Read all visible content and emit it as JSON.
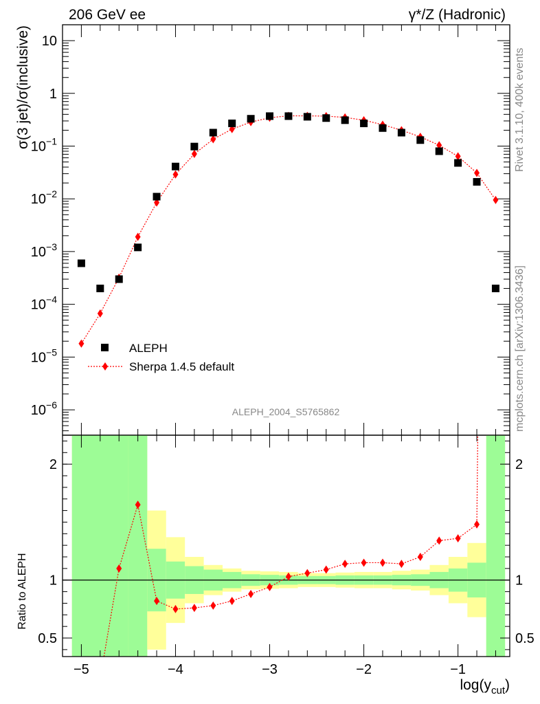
{
  "header": {
    "left_title": "206 GeV ee",
    "right_title": "γ*/Z (Hadronic)"
  },
  "side_labels": {
    "rivet": "Rivet 3.1.10,  400k events",
    "mcplots": "mcplots.cern.ch [arXiv:1306.3436]"
  },
  "analysis_id": "ALEPH_2004_S5765862",
  "chart_data": [
    {
      "type": "scatter",
      "scale": "log",
      "title": "206 GeV ee",
      "ylabel": "σ(3 jet)/σ(inclusive)",
      "xlabel": "log(y_cut)",
      "xlim": [
        -5.2,
        -0.45
      ],
      "ylim": [
        3.3e-07,
        20
      ],
      "x_ticks": [
        -5,
        -4,
        -3,
        -2,
        -1
      ],
      "y_ticks": [
        {
          "value": 1e-06,
          "base": "10",
          "exp": "−6"
        },
        {
          "value": 1e-05,
          "base": "10",
          "exp": "−5"
        },
        {
          "value": 0.0001,
          "base": "10",
          "exp": "−4"
        },
        {
          "value": 0.001,
          "base": "10",
          "exp": "−3"
        },
        {
          "value": 0.01,
          "base": "10",
          "exp": "−2"
        },
        {
          "value": 0.1,
          "base": "10",
          "exp": "−1"
        },
        {
          "value": 1,
          "base": "1",
          "exp": ""
        },
        {
          "value": 10,
          "base": "10",
          "exp": ""
        }
      ],
      "legend": [
        {
          "label": "ALEPH",
          "marker": "square",
          "color": "#000000"
        },
        {
          "label": "Sherpa 1.4.5 default",
          "marker": "diamond",
          "color": "#ff0000"
        }
      ],
      "series": [
        {
          "name": "ALEPH",
          "color": "#000000",
          "x": [
            -5.0,
            -4.8,
            -4.6,
            -4.4,
            -4.2,
            -4.0,
            -3.8,
            -3.6,
            -3.4,
            -3.2,
            -3.0,
            -2.8,
            -2.6,
            -2.4,
            -2.2,
            -2.0,
            -1.8,
            -1.6,
            -1.4,
            -1.2,
            -1.0,
            -0.8,
            -0.6
          ],
          "y": [
            0.0006,
            0.0002,
            0.0003,
            0.0012,
            0.011,
            0.041,
            0.098,
            0.18,
            0.27,
            0.33,
            0.37,
            0.37,
            0.36,
            0.34,
            0.31,
            0.27,
            0.22,
            0.18,
            0.13,
            0.08,
            0.048,
            0.021,
            0.0002
          ]
        },
        {
          "name": "Sherpa 1.4.5 default",
          "color": "#ff0000",
          "x": [
            -5.0,
            -4.8,
            -4.6,
            -4.4,
            -4.2,
            -4.0,
            -3.8,
            -3.6,
            -3.4,
            -3.2,
            -3.0,
            -2.8,
            -2.6,
            -2.4,
            -2.2,
            -2.0,
            -1.8,
            -1.6,
            -1.4,
            -1.2,
            -1.0,
            -0.8,
            -0.6
          ],
          "y": [
            1.8e-05,
            6.7e-05,
            0.00032,
            0.0019,
            0.0085,
            0.029,
            0.071,
            0.135,
            0.21,
            0.285,
            0.345,
            0.375,
            0.375,
            0.37,
            0.35,
            0.31,
            0.255,
            0.2,
            0.15,
            0.104,
            0.064,
            0.031,
            0.0095
          ]
        }
      ]
    },
    {
      "type": "line",
      "ylabel": "Ratio to ALEPH",
      "xlabel": "log(y_cut)",
      "xlim": [
        -5.2,
        -0.45
      ],
      "ylim": [
        0.34,
        2.25
      ],
      "y_ticks": [
        0.5,
        1,
        2
      ],
      "y_tick_labels": [
        "0.5",
        "1",
        "2"
      ],
      "x_ticks": [
        -5,
        -4,
        -3,
        -2,
        -1
      ],
      "x_tick_labels": [
        "−5",
        "−4",
        "−3",
        "−2",
        "−1"
      ],
      "reference_line": 1,
      "bands": {
        "bin_edges": [
          -5.1,
          -4.5,
          -4.3,
          -4.1,
          -3.9,
          -3.7,
          -3.5,
          -3.3,
          -3.1,
          -2.9,
          -2.7,
          -2.5,
          -2.3,
          -2.1,
          -1.9,
          -1.7,
          -1.5,
          -1.3,
          -1.1,
          -0.9,
          -0.7,
          -0.5
        ],
        "green_half_width": [
          2.0,
          2.0,
          0.27,
          0.16,
          0.12,
          0.09,
          0.07,
          0.05,
          0.045,
          0.04,
          0.035,
          0.035,
          0.04,
          0.04,
          0.04,
          0.045,
          0.05,
          0.07,
          0.1,
          0.15,
          2.0
        ],
        "yellow_half_width": [
          2.0,
          2.0,
          0.6,
          0.37,
          0.2,
          0.13,
          0.1,
          0.08,
          0.075,
          0.07,
          0.06,
          0.06,
          0.065,
          0.07,
          0.07,
          0.08,
          0.09,
          0.13,
          0.2,
          0.32,
          2.0
        ],
        "green_color": "#9dfc96",
        "yellow_color": "#ffff9a"
      },
      "series": [
        {
          "name": "Sherpa / ALEPH",
          "color": "#ff0000",
          "x": [
            -4.6,
            -4.4,
            -4.2,
            -4.0,
            -3.8,
            -3.6,
            -3.4,
            -3.2,
            -3.0,
            -2.8,
            -2.6,
            -2.4,
            -2.2,
            -2.0,
            -1.8,
            -1.6,
            -1.4,
            -1.2,
            -1.0,
            -0.8
          ],
          "y": [
            1.1,
            1.65,
            0.82,
            0.75,
            0.76,
            0.78,
            0.82,
            0.88,
            0.94,
            1.03,
            1.06,
            1.09,
            1.14,
            1.15,
            1.15,
            1.14,
            1.2,
            1.34,
            1.36,
            1.48
          ]
        }
      ]
    }
  ]
}
